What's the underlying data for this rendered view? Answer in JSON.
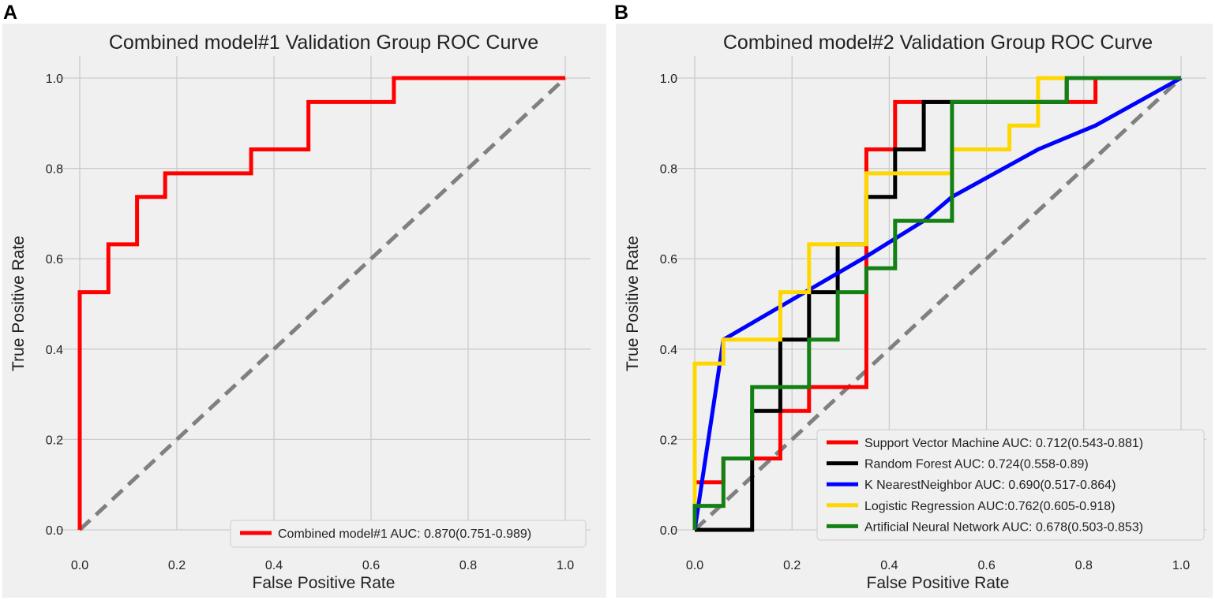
{
  "figure": {
    "panel_a_letter": "A",
    "panel_b_letter": "B"
  },
  "colors": {
    "background": "#f0f0f0",
    "grid": "#cbcbcb",
    "diagonal": "#808080"
  },
  "chart_data": [
    {
      "type": "line",
      "title": "Combined model#1 Validation Group ROC Curve",
      "xlabel": "False Positive Rate",
      "ylabel": "True Positive Rate",
      "xlim": [
        0,
        1
      ],
      "ylim": [
        0,
        1
      ],
      "xticks": [
        "0.0",
        "0.2",
        "0.4",
        "0.6",
        "0.8",
        "1.0"
      ],
      "yticks": [
        "0.0",
        "0.2",
        "0.4",
        "0.6",
        "0.8",
        "1.0"
      ],
      "grid": true,
      "legend_position": "lower-right",
      "diagonal": true,
      "series": [
        {
          "name": "Combined model#1 AUC: 0.870(0.751-0.989)",
          "color": "#ff0000",
          "x": [
            0,
            0,
            0.059,
            0.059,
            0.118,
            0.118,
            0.176,
            0.176,
            0.353,
            0.353,
            0.471,
            0.471,
            0.647,
            0.647,
            1.0
          ],
          "y": [
            0,
            0.526,
            0.526,
            0.632,
            0.632,
            0.737,
            0.737,
            0.789,
            0.789,
            0.842,
            0.842,
            0.947,
            0.947,
            1.0,
            1.0
          ]
        }
      ]
    },
    {
      "type": "line",
      "title": "Combined model#2 Validation Group ROC Curve",
      "xlabel": "False Positive Rate",
      "ylabel": "True Positive Rate",
      "xlim": [
        0,
        1
      ],
      "ylim": [
        0,
        1
      ],
      "xticks": [
        "0.0",
        "0.2",
        "0.4",
        "0.6",
        "0.8",
        "1.0"
      ],
      "yticks": [
        "0.0",
        "0.2",
        "0.4",
        "0.6",
        "0.8",
        "1.0"
      ],
      "grid": true,
      "legend_position": "lower-right",
      "diagonal": true,
      "series": [
        {
          "name": "Support Vector Machine AUC: 0.712(0.543-0.881)",
          "color": "#ff0000",
          "x": [
            0,
            0,
            0.059,
            0.059,
            0.118,
            0.118,
            0.176,
            0.176,
            0.235,
            0.235,
            0.353,
            0.353,
            0.412,
            0.412,
            0.824,
            0.824,
            1.0
          ],
          "y": [
            0,
            0.105,
            0.105,
            0.158,
            0.158,
            0.158,
            0.158,
            0.263,
            0.263,
            0.316,
            0.316,
            0.842,
            0.842,
            0.947,
            0.947,
            1.0,
            1.0
          ]
        },
        {
          "name": "Random Forest AUC: 0.724(0.558-0.89)",
          "color": "#000000",
          "x": [
            0,
            0.118,
            0.118,
            0.176,
            0.176,
            0.235,
            0.235,
            0.294,
            0.294,
            0.353,
            0.353,
            0.412,
            0.412,
            0.471,
            0.471,
            0.765,
            0.765,
            1.0
          ],
          "y": [
            0,
            0,
            0.263,
            0.263,
            0.421,
            0.421,
            0.526,
            0.526,
            0.632,
            0.632,
            0.737,
            0.737,
            0.842,
            0.842,
            0.947,
            0.947,
            1.0,
            1.0
          ]
        },
        {
          "name": "K NearestNeighbor AUC: 0.690(0.517-0.864)",
          "color": "#0000ff",
          "x": [
            0,
            0.059,
            0.353,
            0.471,
            0.529,
            0.706,
            0.824,
            1.0
          ],
          "y": [
            0,
            0.421,
            0.605,
            0.684,
            0.737,
            0.842,
            0.895,
            1.0
          ]
        },
        {
          "name": "Logistic Regression AUC:0.762(0.605-0.918)",
          "color": "#ffd700",
          "x": [
            0,
            0,
            0.059,
            0.059,
            0.176,
            0.176,
            0.235,
            0.235,
            0.353,
            0.353,
            0.529,
            0.529,
            0.647,
            0.647,
            0.706,
            0.706,
            1.0
          ],
          "y": [
            0,
            0.368,
            0.368,
            0.421,
            0.421,
            0.526,
            0.526,
            0.632,
            0.632,
            0.789,
            0.789,
            0.842,
            0.842,
            0.895,
            0.895,
            1.0,
            1.0
          ]
        },
        {
          "name": "Artificial Neural Network AUC: 0.678(0.503-0.853)",
          "color": "#138013",
          "x": [
            0,
            0,
            0.059,
            0.059,
            0.118,
            0.118,
            0.235,
            0.235,
            0.294,
            0.294,
            0.353,
            0.353,
            0.412,
            0.412,
            0.529,
            0.529,
            0.765,
            0.765,
            1.0
          ],
          "y": [
            0,
            0.053,
            0.053,
            0.158,
            0.158,
            0.316,
            0.316,
            0.421,
            0.421,
            0.526,
            0.526,
            0.579,
            0.579,
            0.684,
            0.684,
            0.947,
            0.947,
            1.0,
            1.0
          ]
        }
      ]
    }
  ]
}
